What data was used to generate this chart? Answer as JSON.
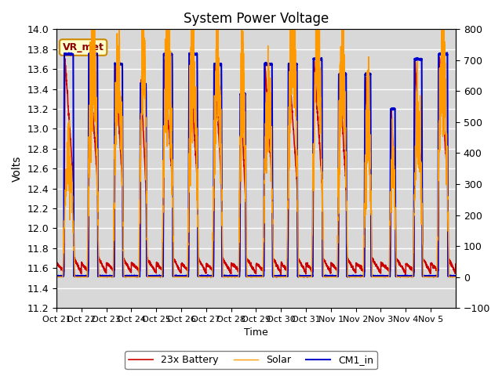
{
  "title": "System Power Voltage",
  "xlabel": "Time",
  "ylabel_left": "Volts",
  "ylim_left": [
    11.2,
    14.0
  ],
  "ylim_right": [
    -100,
    800
  ],
  "annotation": "VR_met",
  "legend": [
    "23x Battery",
    "Solar",
    "CM1_in"
  ],
  "line_colors": [
    "#cc0000",
    "#ff9900",
    "#0000cc"
  ],
  "background_color": "#d8d8d8",
  "figure_color": "#ffffff",
  "x_tick_labels": [
    "Oct 21",
    "Oct 22",
    "Oct 23",
    "Oct 24",
    "Oct 25",
    "Oct 26",
    "Oct 27",
    "Oct 28",
    "Oct 29",
    "Oct 30",
    "Oct 31",
    "Nov 1",
    "Nov 2",
    "Nov 3",
    "Nov 4",
    "Nov 5"
  ],
  "num_days": 16,
  "right_yticks": [
    -100,
    0,
    100,
    200,
    300,
    400,
    500,
    600,
    700,
    800
  ]
}
